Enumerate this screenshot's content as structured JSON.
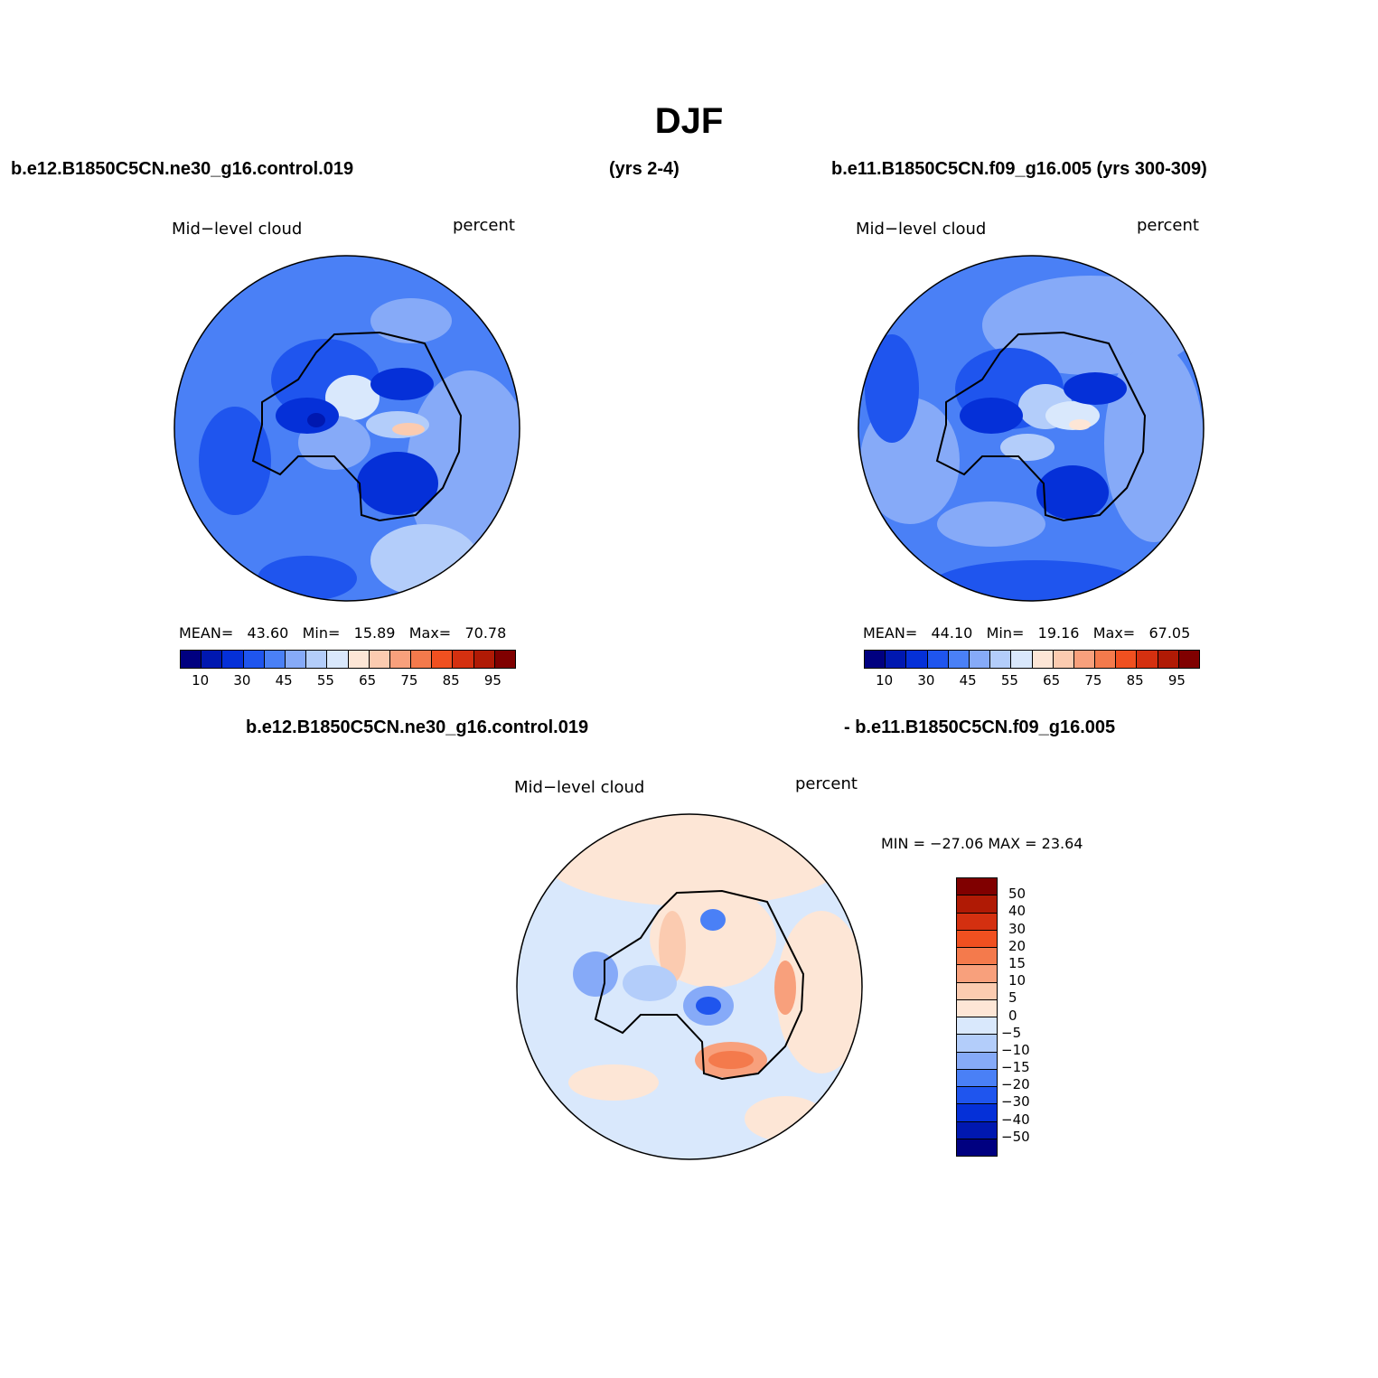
{
  "title": "DJF",
  "case1": "b.e12.B1850C5CN.ne30_g16.control.019",
  "years1": "(yrs 2-4)",
  "case2": "b.e11.B1850C5CN.f09_g16.005 (yrs 300-309)",
  "diff_case1": "b.e12.B1850C5CN.ne30_g16.control.019",
  "diff_case2": "- b.e11.B1850C5CN.f09_g16.005",
  "panels": [
    {
      "variable": "Mid−level cloud",
      "units": "percent",
      "mean_label": "MEAN=",
      "mean": "43.60",
      "min_label": "Min=",
      "min": "15.89",
      "max_label": "Max=",
      "max": "70.78"
    },
    {
      "variable": "Mid−level cloud",
      "units": "percent",
      "mean_label": "MEAN=",
      "mean": "44.10",
      "min_label": "Min=",
      "min": "19.16",
      "max_label": "Max=",
      "max": "67.05"
    }
  ],
  "diff_panel": {
    "variable": "Mid−level cloud",
    "units": "percent",
    "minmax": "MIN = −27.06 MAX =  23.64"
  },
  "colorbar_levels": [
    "10",
    "30",
    "45",
    "55",
    "65",
    "75",
    "85",
    "95"
  ],
  "colorbar_colors": [
    "#000080",
    "#0018b0",
    "#0530d8",
    "#1f55ee",
    "#4a80f6",
    "#86aaf8",
    "#b3cdfa",
    "#d9e8fc",
    "#fde6d6",
    "#fbcbb0",
    "#f8a07c",
    "#f47a4c",
    "#f05020",
    "#d43010",
    "#b01a05",
    "#800000"
  ],
  "diff_levels": [
    "50",
    "40",
    "30",
    "20",
    "15",
    "10",
    "5",
    "0",
    "−5",
    "−10",
    "−15",
    "−20",
    "−30",
    "−40",
    "−50"
  ],
  "diff_colors": [
    "#800000",
    "#b01a05",
    "#d43010",
    "#f05020",
    "#f47a4c",
    "#f8a07c",
    "#fbcbb0",
    "#fde6d6",
    "#d9e8fc",
    "#b3cdfa",
    "#86aaf8",
    "#4a80f6",
    "#1f55ee",
    "#0530d8",
    "#0018b0",
    "#000080"
  ]
}
